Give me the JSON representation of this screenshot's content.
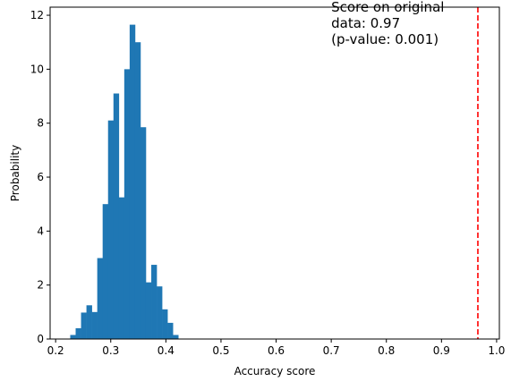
{
  "chart_data": {
    "type": "bar",
    "xlabel": "Accuracy score",
    "ylabel": "Probability",
    "xlim": [
      0.19,
      1.005
    ],
    "ylim": [
      0,
      12.3
    ],
    "xticks": [
      0.2,
      0.3,
      0.4,
      0.5,
      0.6,
      0.7,
      0.8,
      0.9,
      1.0
    ],
    "xtick_labels": [
      "0.2",
      "0.3",
      "0.4",
      "0.5",
      "0.6",
      "0.7",
      "0.8",
      "0.9",
      "1.0"
    ],
    "yticks": [
      0,
      2,
      4,
      6,
      8,
      10,
      12
    ],
    "ytick_labels": [
      "0",
      "2",
      "4",
      "6",
      "8",
      "10",
      "12"
    ],
    "grid": false,
    "bar_color": "#1f77b4",
    "bins": [
      {
        "x0": 0.2265,
        "x1": 0.2363,
        "value": 0.15
      },
      {
        "x0": 0.2363,
        "x1": 0.2461,
        "value": 0.4
      },
      {
        "x0": 0.2461,
        "x1": 0.2559,
        "value": 0.98
      },
      {
        "x0": 0.2559,
        "x1": 0.2657,
        "value": 1.25
      },
      {
        "x0": 0.2657,
        "x1": 0.2755,
        "value": 1.0
      },
      {
        "x0": 0.2755,
        "x1": 0.2853,
        "value": 3.0
      },
      {
        "x0": 0.2853,
        "x1": 0.2951,
        "value": 5.0
      },
      {
        "x0": 0.2951,
        "x1": 0.3049,
        "value": 8.1
      },
      {
        "x0": 0.3049,
        "x1": 0.3147,
        "value": 9.1
      },
      {
        "x0": 0.3147,
        "x1": 0.3245,
        "value": 5.25
      },
      {
        "x0": 0.3245,
        "x1": 0.3343,
        "value": 10.0
      },
      {
        "x0": 0.3343,
        "x1": 0.3441,
        "value": 11.65
      },
      {
        "x0": 0.3441,
        "x1": 0.3539,
        "value": 11.0
      },
      {
        "x0": 0.3539,
        "x1": 0.3637,
        "value": 7.85
      },
      {
        "x0": 0.3637,
        "x1": 0.3735,
        "value": 2.1
      },
      {
        "x0": 0.3735,
        "x1": 0.3833,
        "value": 2.75
      },
      {
        "x0": 0.3833,
        "x1": 0.3931,
        "value": 1.95
      },
      {
        "x0": 0.3931,
        "x1": 0.4029,
        "value": 1.1
      },
      {
        "x0": 0.4029,
        "x1": 0.4127,
        "value": 0.6
      },
      {
        "x0": 0.4127,
        "x1": 0.4225,
        "value": 0.15
      }
    ],
    "reference_line": {
      "x": 0.966,
      "color": "#ff0000",
      "style": "dashed"
    },
    "annotation": {
      "lines": [
        "Score on original",
        "data: 0.97",
        "(p-value: 0.001)"
      ],
      "x": 0.7,
      "y": 11.0
    }
  }
}
